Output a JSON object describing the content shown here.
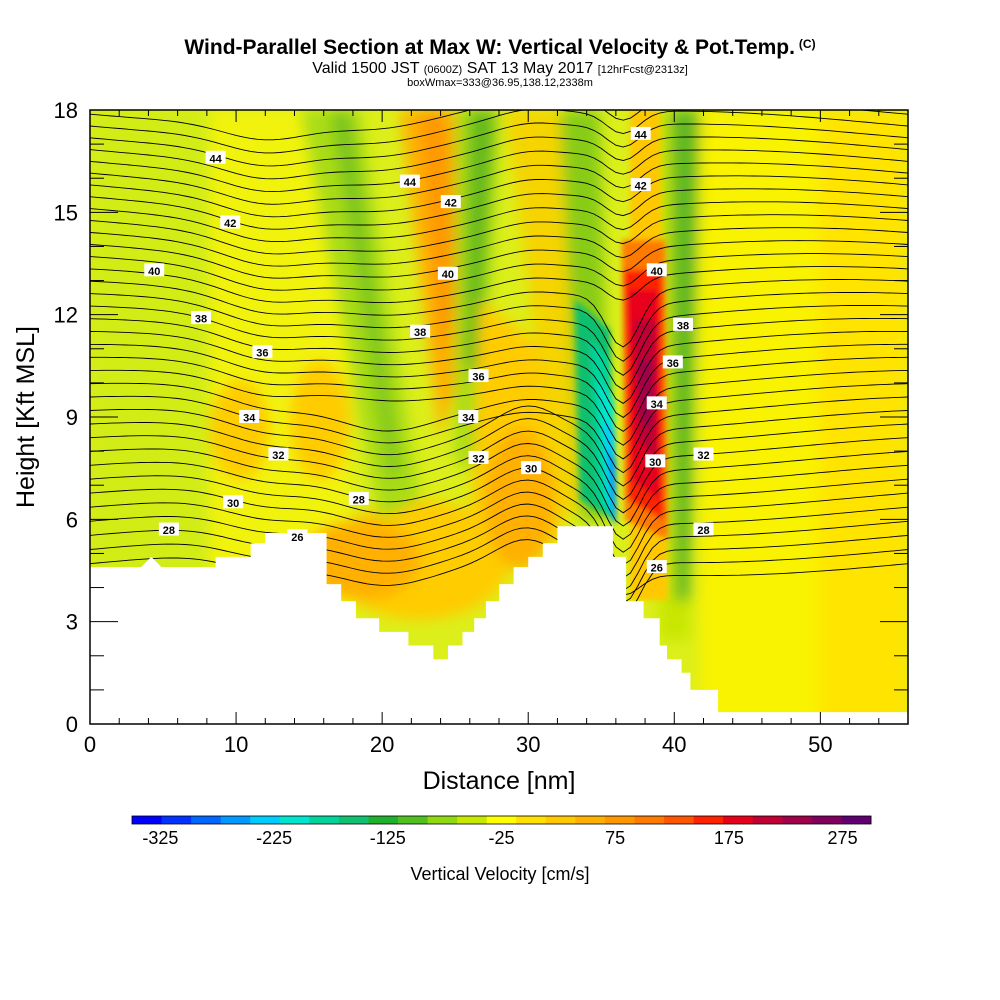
{
  "header": {
    "title": "Wind-Parallel Section at Max W: Vertical Velocity & Pot.Temp.",
    "title_units": "(C)",
    "subtitle_a": "Valid 1500 JST",
    "subtitle_b": "(0600Z)",
    "subtitle_c": "SAT 13 May 2017",
    "subtitle_d": "[12hrFcst@2313z]",
    "subtitle_line2": "boxWmax=333@36.95,138.12,2338m"
  },
  "chart_data": {
    "type": "heatmap",
    "xlabel": "Distance [nm]",
    "ylabel": "Height [Kft MSL]",
    "xlim": [
      0,
      56
    ],
    "ylim": [
      0,
      18
    ],
    "x_ticks": [
      0,
      10,
      20,
      30,
      40,
      50
    ],
    "y_ticks": [
      0,
      3,
      6,
      9,
      12,
      15,
      18
    ],
    "colorbar": {
      "label": "Vertical Velocity [cm/s]",
      "tick_labels": [
        "-325",
        "-225",
        "-125",
        "-25",
        "75",
        "175",
        "275"
      ],
      "tick_values": [
        -325,
        -225,
        -125,
        -25,
        75,
        175,
        275
      ],
      "range": [
        -350,
        300
      ],
      "colors": [
        "#0000ff",
        "#0033ff",
        "#0066ff",
        "#0099ff",
        "#00ccff",
        "#00e5d0",
        "#00d49a",
        "#10c070",
        "#20b030",
        "#50c020",
        "#90d810",
        "#c8e800",
        "#ffff00",
        "#ffe000",
        "#ffc800",
        "#ffb000",
        "#ff9800",
        "#ff7a00",
        "#ff5500",
        "#ff2200",
        "#e8001a",
        "#c00035",
        "#a0004a",
        "#800060",
        "#600070"
      ]
    },
    "terrain_kft": [
      [
        0,
        4.6
      ],
      [
        3.5,
        4.6
      ],
      [
        4.2,
        4.9
      ],
      [
        4.9,
        4.6
      ],
      [
        8.6,
        4.6
      ],
      [
        8.6,
        4.9
      ],
      [
        11,
        4.9
      ],
      [
        11,
        5.3
      ],
      [
        12,
        5.3
      ],
      [
        12,
        5.6
      ],
      [
        16.2,
        5.6
      ],
      [
        16.2,
        4.1
      ],
      [
        17.2,
        4.1
      ],
      [
        17.2,
        3.6
      ],
      [
        18.2,
        3.6
      ],
      [
        18.2,
        3.1
      ],
      [
        19.8,
        3.1
      ],
      [
        19.8,
        2.7
      ],
      [
        21.8,
        2.7
      ],
      [
        21.8,
        2.3
      ],
      [
        23.5,
        2.3
      ],
      [
        23.5,
        1.9
      ],
      [
        24.5,
        1.9
      ],
      [
        24.5,
        2.3
      ],
      [
        25.5,
        2.3
      ],
      [
        25.5,
        2.7
      ],
      [
        26.3,
        2.7
      ],
      [
        26.3,
        3.1
      ],
      [
        27.1,
        3.1
      ],
      [
        27.1,
        3.6
      ],
      [
        28,
        3.6
      ],
      [
        28,
        4.1
      ],
      [
        29,
        4.1
      ],
      [
        29,
        4.6
      ],
      [
        30,
        4.6
      ],
      [
        30,
        4.9
      ],
      [
        31,
        4.9
      ],
      [
        31,
        5.3
      ],
      [
        32,
        5.3
      ],
      [
        32,
        5.8
      ],
      [
        34.4,
        5.8
      ],
      [
        34.4,
        5.8
      ],
      [
        35.8,
        5.8
      ],
      [
        35.8,
        4.9
      ],
      [
        36.7,
        4.9
      ],
      [
        36.7,
        3.6
      ],
      [
        37.9,
        3.6
      ],
      [
        37.9,
        3.1
      ],
      [
        39,
        3.1
      ],
      [
        39,
        2.3
      ],
      [
        39.5,
        2.3
      ],
      [
        39.5,
        1.9
      ],
      [
        40.5,
        1.9
      ],
      [
        40.5,
        1.5
      ],
      [
        41.1,
        1.5
      ],
      [
        41.1,
        1.0
      ],
      [
        43,
        1.0
      ],
      [
        43,
        0.35
      ],
      [
        56,
        0.35
      ]
    ],
    "theta_contours": [
      26,
      28,
      30,
      32,
      34,
      36,
      38,
      40,
      42,
      44
    ],
    "theta_labels": [
      {
        "text": "44",
        "x": 8.6,
        "y": 16.6
      },
      {
        "text": "42",
        "x": 9.6,
        "y": 14.7
      },
      {
        "text": "40",
        "x": 4.4,
        "y": 13.3
      },
      {
        "text": "38",
        "x": 7.6,
        "y": 11.9
      },
      {
        "text": "36",
        "x": 11.8,
        "y": 10.9
      },
      {
        "text": "34",
        "x": 10.9,
        "y": 9.0
      },
      {
        "text": "32",
        "x": 12.9,
        "y": 7.9
      },
      {
        "text": "30",
        "x": 9.8,
        "y": 6.5
      },
      {
        "text": "28",
        "x": 5.4,
        "y": 5.7
      },
      {
        "text": "26",
        "x": 14.2,
        "y": 5.5
      },
      {
        "text": "28",
        "x": 18.4,
        "y": 6.6
      },
      {
        "text": "44",
        "x": 21.9,
        "y": 15.9
      },
      {
        "text": "42",
        "x": 24.7,
        "y": 15.3
      },
      {
        "text": "40",
        "x": 24.5,
        "y": 13.2
      },
      {
        "text": "38",
        "x": 22.6,
        "y": 11.5
      },
      {
        "text": "36",
        "x": 26.6,
        "y": 10.2
      },
      {
        "text": "34",
        "x": 25.9,
        "y": 9.0
      },
      {
        "text": "32",
        "x": 26.6,
        "y": 7.8
      },
      {
        "text": "30",
        "x": 30.2,
        "y": 7.5
      },
      {
        "text": "44",
        "x": 37.7,
        "y": 17.3
      },
      {
        "text": "42",
        "x": 37.7,
        "y": 15.8
      },
      {
        "text": "40",
        "x": 38.8,
        "y": 13.3
      },
      {
        "text": "38",
        "x": 40.6,
        "y": 11.7
      },
      {
        "text": "36",
        "x": 39.9,
        "y": 10.6
      },
      {
        "text": "34",
        "x": 38.8,
        "y": 9.4
      },
      {
        "text": "30",
        "x": 38.7,
        "y": 7.7
      },
      {
        "text": "32",
        "x": 42.0,
        "y": 7.9
      },
      {
        "text": "28",
        "x": 42.0,
        "y": 5.7
      },
      {
        "text": "26",
        "x": 38.8,
        "y": 4.6
      }
    ]
  }
}
